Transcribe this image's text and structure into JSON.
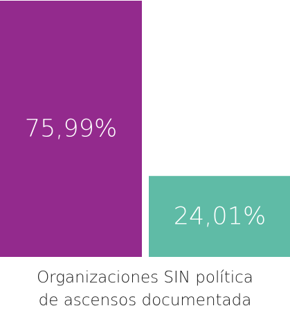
{
  "chart_data": {
    "type": "bar",
    "categories": [
      "",
      ""
    ],
    "values": [
      75.99,
      24.01
    ],
    "data_labels": [
      "75,99%",
      "24,01%"
    ],
    "colors": [
      "#932a8d",
      "#5fbba6"
    ],
    "label_color": "#ffffff",
    "ylim": [
      0,
      75.99
    ],
    "grid": false,
    "caption": [
      "Organizaciones SIN política",
      "de ascensos documentada"
    ]
  }
}
